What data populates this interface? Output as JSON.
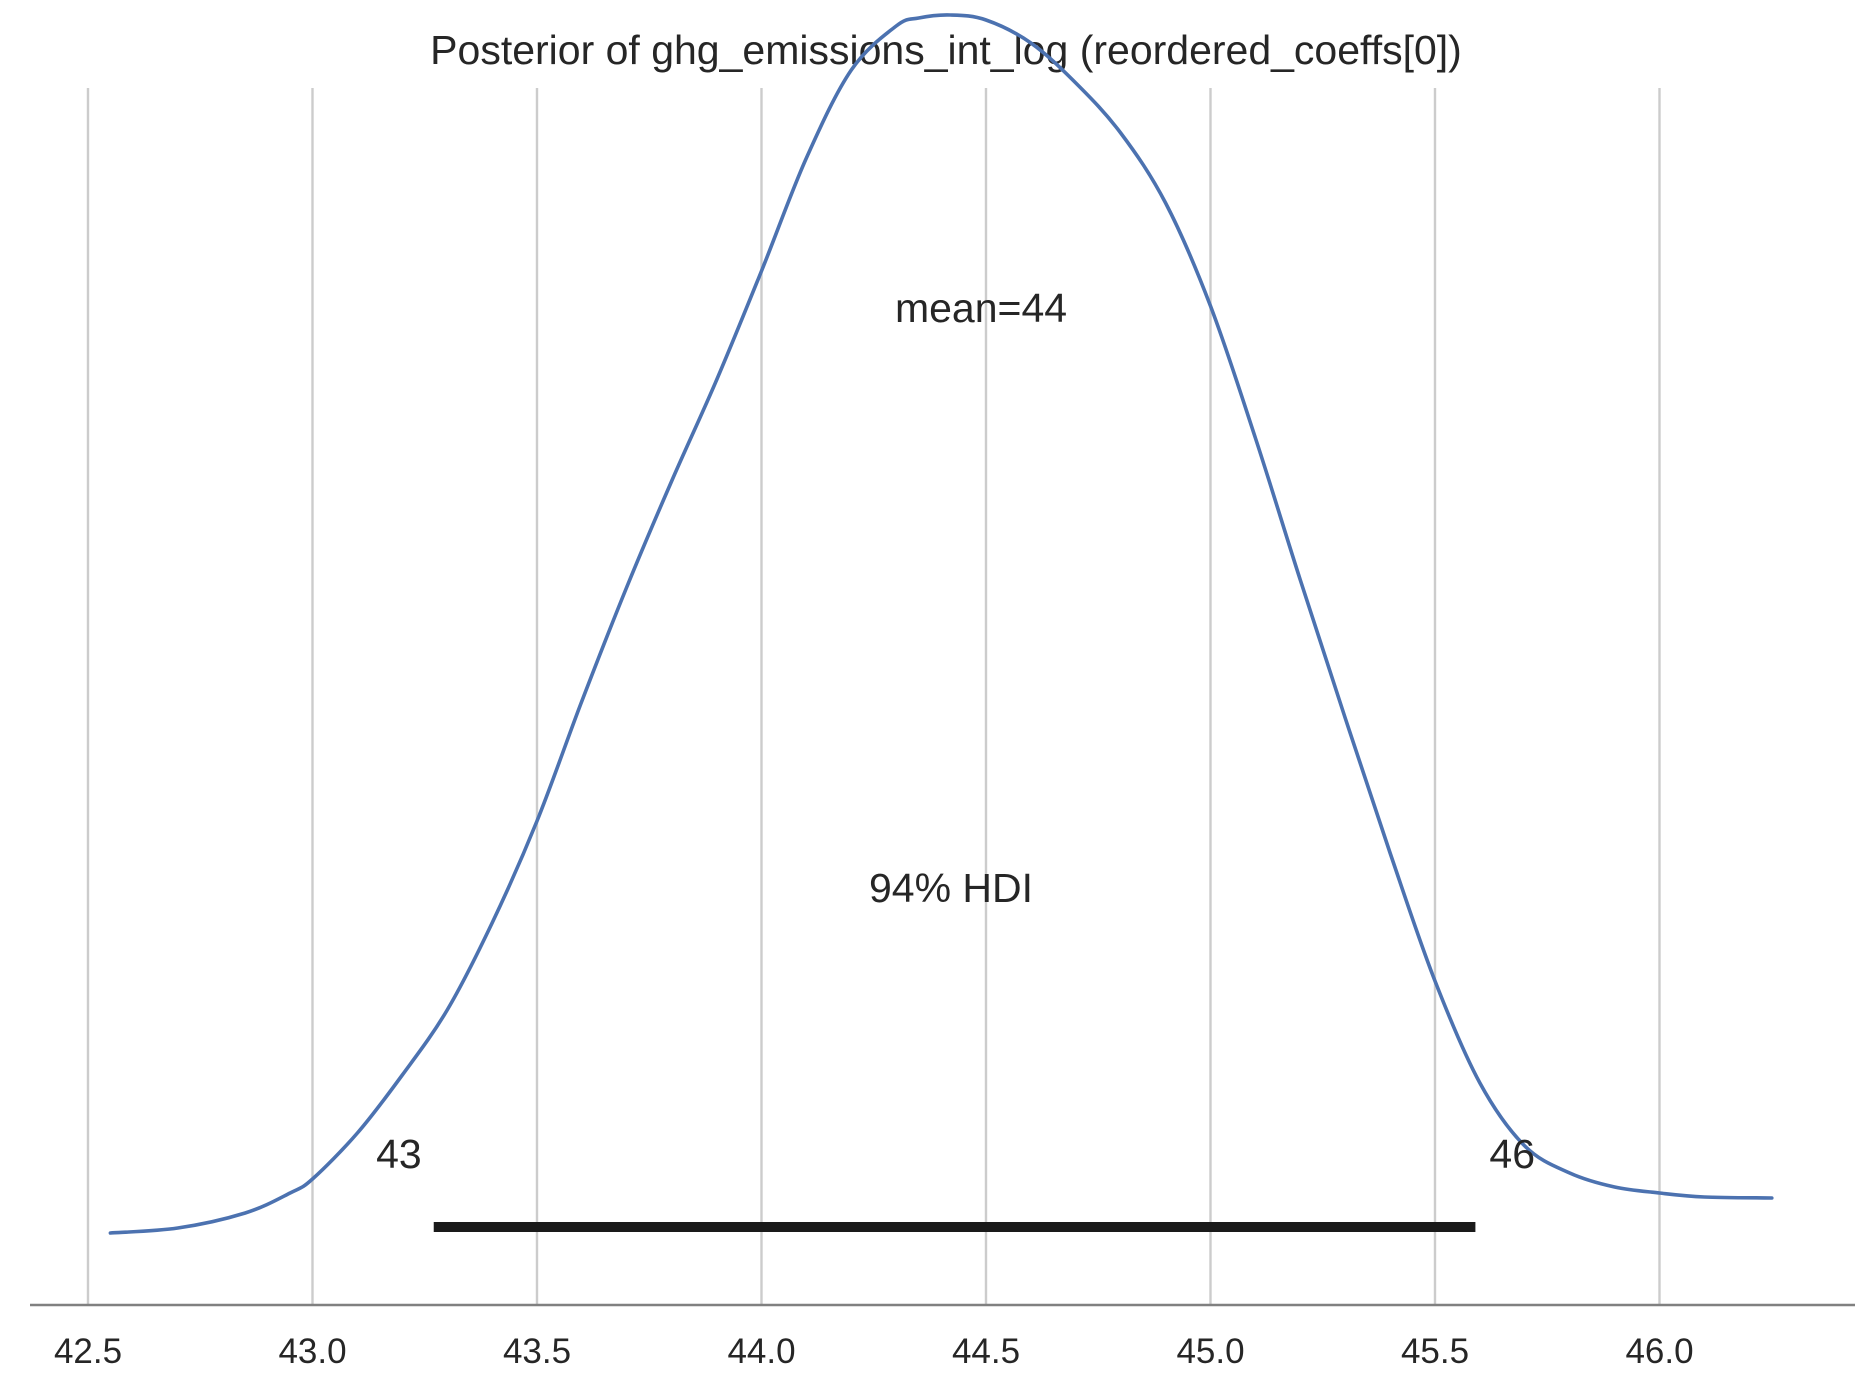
{
  "chart_data": {
    "type": "area",
    "title": "Posterior of ghg_emissions_int_log (reordered_coeffs[0])",
    "xlabel": "",
    "ylabel": "",
    "xlim": [
      42.45,
      46.45
    ],
    "grid": "vertical",
    "xticks": [
      42.5,
      43.0,
      43.5,
      44.0,
      44.5,
      45.0,
      45.5,
      46.0
    ],
    "xtick_labels": [
      "42.5",
      "43.0",
      "43.5",
      "44.0",
      "44.5",
      "45.0",
      "45.5",
      "46.0"
    ],
    "density": {
      "x": [
        42.55,
        42.7,
        42.85,
        42.95,
        43.0,
        43.1,
        43.2,
        43.3,
        43.4,
        43.5,
        43.6,
        43.7,
        43.8,
        43.9,
        44.0,
        44.1,
        44.2,
        44.3,
        44.35,
        44.42,
        44.5,
        44.6,
        44.7,
        44.8,
        44.9,
        45.0,
        45.1,
        45.2,
        45.3,
        45.4,
        45.5,
        45.6,
        45.7,
        45.8,
        45.9,
        46.0,
        46.1,
        46.25
      ],
      "y": [
        0.0,
        0.005,
        0.02,
        0.04,
        0.054,
        0.1,
        0.158,
        0.223,
        0.31,
        0.412,
        0.532,
        0.646,
        0.752,
        0.853,
        0.962,
        1.075,
        1.163,
        1.207,
        1.215,
        1.218,
        1.213,
        1.19,
        1.15,
        1.1,
        1.03,
        0.927,
        0.795,
        0.653,
        0.515,
        0.38,
        0.252,
        0.15,
        0.087,
        0.06,
        0.046,
        0.04,
        0.036,
        0.035
      ],
      "color": "#4c72b0"
    },
    "mean_label": "mean=44",
    "hdi": {
      "label": "94% HDI",
      "low": 43.27,
      "high": 45.59,
      "low_label": "43",
      "high_label": "46",
      "color": "#1a1a1a"
    }
  }
}
